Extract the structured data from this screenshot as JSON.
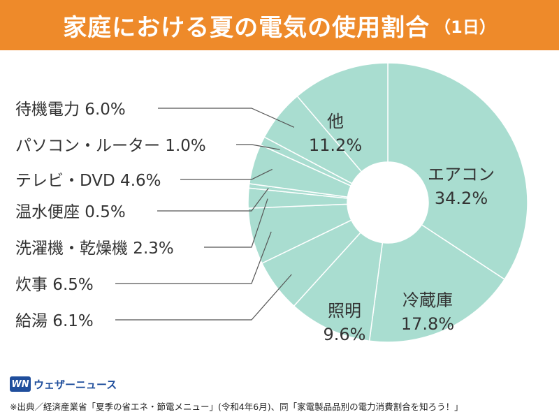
{
  "header": {
    "title": "家庭における夏の電気の使用割合",
    "subtitle": "（1日）"
  },
  "footer": {
    "brand": "ウェザーニュース",
    "brand_mark": "WN",
    "source": "※出典／経済産業省「夏季の省エネ・節電メニュー」(令和4年6月)、同「家電製品品別の電力消費割合を知ろう！」"
  },
  "colors": {
    "header_bg": "#ee8a2a",
    "slice_fill": "#a9ddd0",
    "slice_stroke": "#ffffff",
    "leader_line": "#555555",
    "label_text": "#333333"
  },
  "chart_data": {
    "type": "pie",
    "style": "donut",
    "title": "家庭における夏の電気の使用割合",
    "subtitle": "（1日）",
    "unit": "%",
    "slices": [
      {
        "label": "エアコン",
        "value": 34.2,
        "display": "34.2%"
      },
      {
        "label": "冷蔵庫",
        "value": 17.8,
        "display": "17.8%"
      },
      {
        "label": "照明",
        "value": 9.6,
        "display": "9.6%"
      },
      {
        "label": "給湯",
        "value": 6.1,
        "display": "6.1%"
      },
      {
        "label": "炊事",
        "value": 6.5,
        "display": "6.5%"
      },
      {
        "label": "洗濯機・乾燥機",
        "value": 2.3,
        "display": "2.3%"
      },
      {
        "label": "温水便座",
        "value": 0.5,
        "display": "0.5%"
      },
      {
        "label": "テレビ・DVD",
        "value": 4.6,
        "display": "4.6%"
      },
      {
        "label": "パソコン・ルーター",
        "value": 1.0,
        "display": "1.0%"
      },
      {
        "label": "待機電力",
        "value": 6.0,
        "display": "6.0%"
      },
      {
        "label": "他",
        "value": 11.2,
        "display": "11.2%"
      }
    ]
  }
}
